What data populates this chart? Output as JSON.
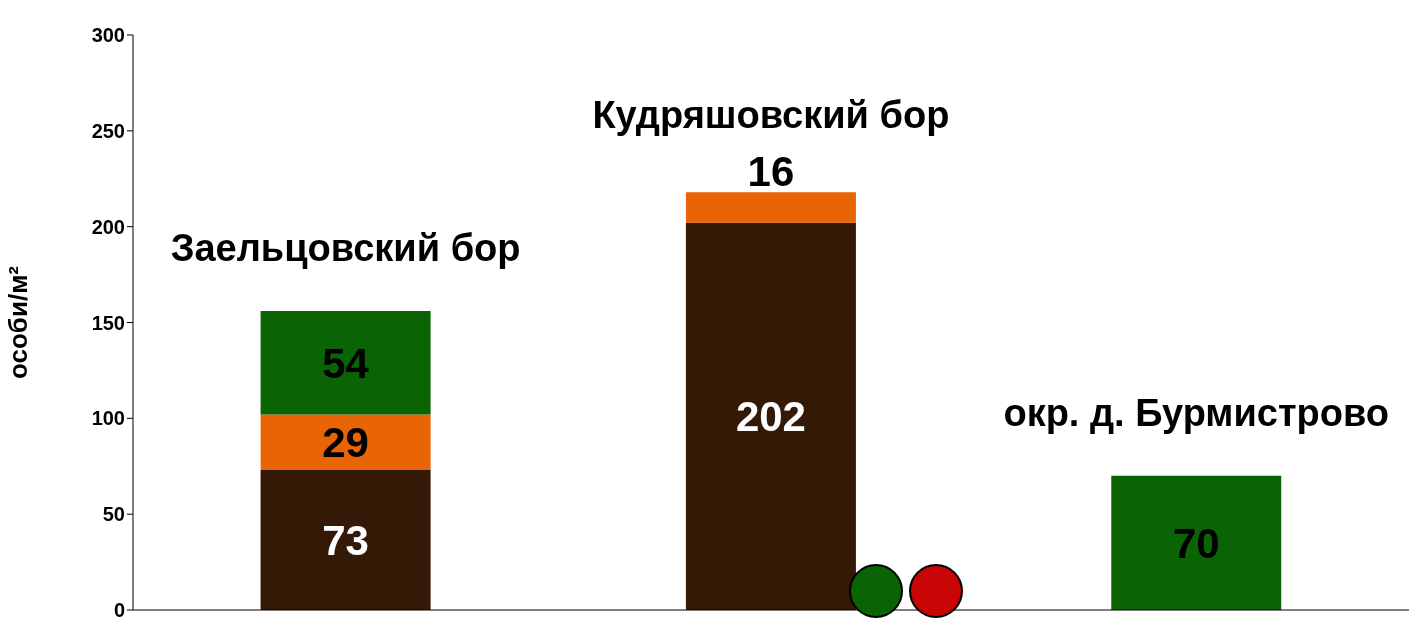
{
  "chart_data": {
    "type": "bar",
    "stacked": true,
    "ylabel": "особи/м²",
    "categories": [
      "Заельцовский бор",
      "Кудряшовский бор",
      "окр. д. Бурмистрово"
    ],
    "series": [
      {
        "color": "#341a06",
        "values": [
          73,
          202,
          null
        ]
      },
      {
        "color": "#e86405",
        "values": [
          29,
          16,
          null
        ]
      },
      {
        "color": "#0a6404",
        "values": [
          54,
          null,
          70
        ]
      }
    ],
    "ylim": [
      0,
      300
    ],
    "yticks": [
      0,
      50,
      100,
      150,
      200,
      250,
      300
    ],
    "data_labels": true,
    "grid": false,
    "legend": false
  }
}
